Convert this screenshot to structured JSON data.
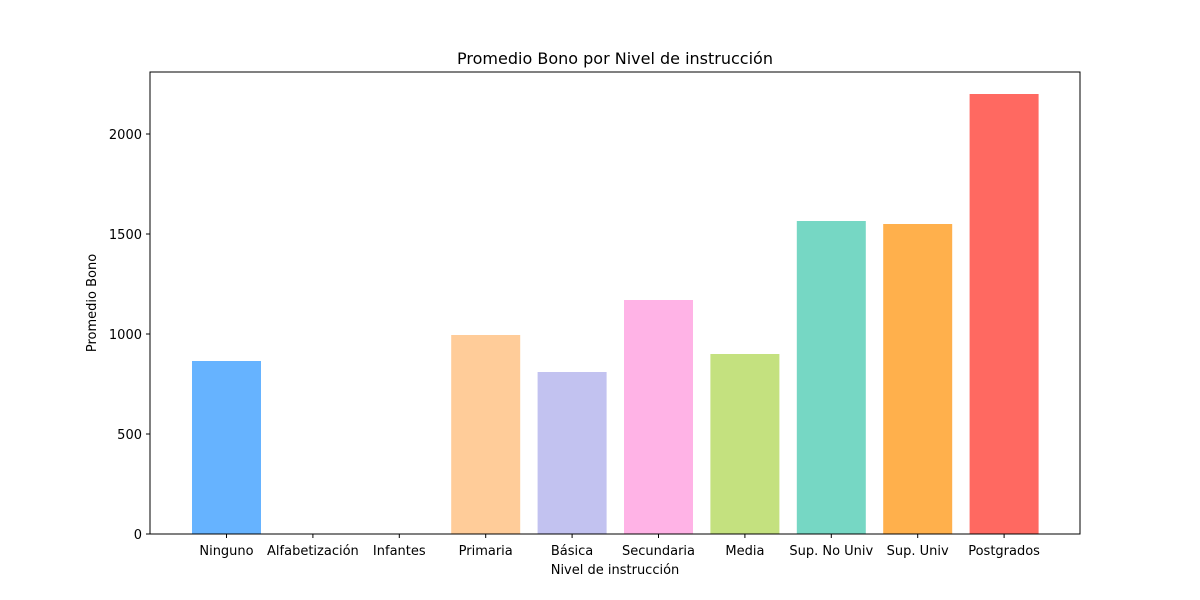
{
  "chart_data": {
    "type": "bar",
    "title": "Promedio Bono por Nivel de instrucción",
    "xlabel": "Nivel de instrucción",
    "ylabel": "Promedio Bono",
    "categories": [
      "Ninguno",
      "Alfabetización",
      "Infantes",
      "Primaria",
      "Básica",
      "Secundaria",
      "Media",
      "Sup. No Univ",
      "Sup. Univ",
      "Postgrados"
    ],
    "values": [
      865,
      0,
      0,
      995,
      810,
      1170,
      900,
      1565,
      1550,
      2200
    ],
    "colors": [
      "#66b3ff",
      "#ff9999",
      "#99ff99",
      "#ffcc99",
      "#c2c2f0",
      "#ffb3e6",
      "#c4e17f",
      "#76d7c4",
      "#ffb04c",
      "#ff6961"
    ],
    "ylim": [
      0,
      2310
    ],
    "yticks": [
      0,
      500,
      1000,
      1500,
      2000
    ],
    "grid": false,
    "legend": "none"
  }
}
